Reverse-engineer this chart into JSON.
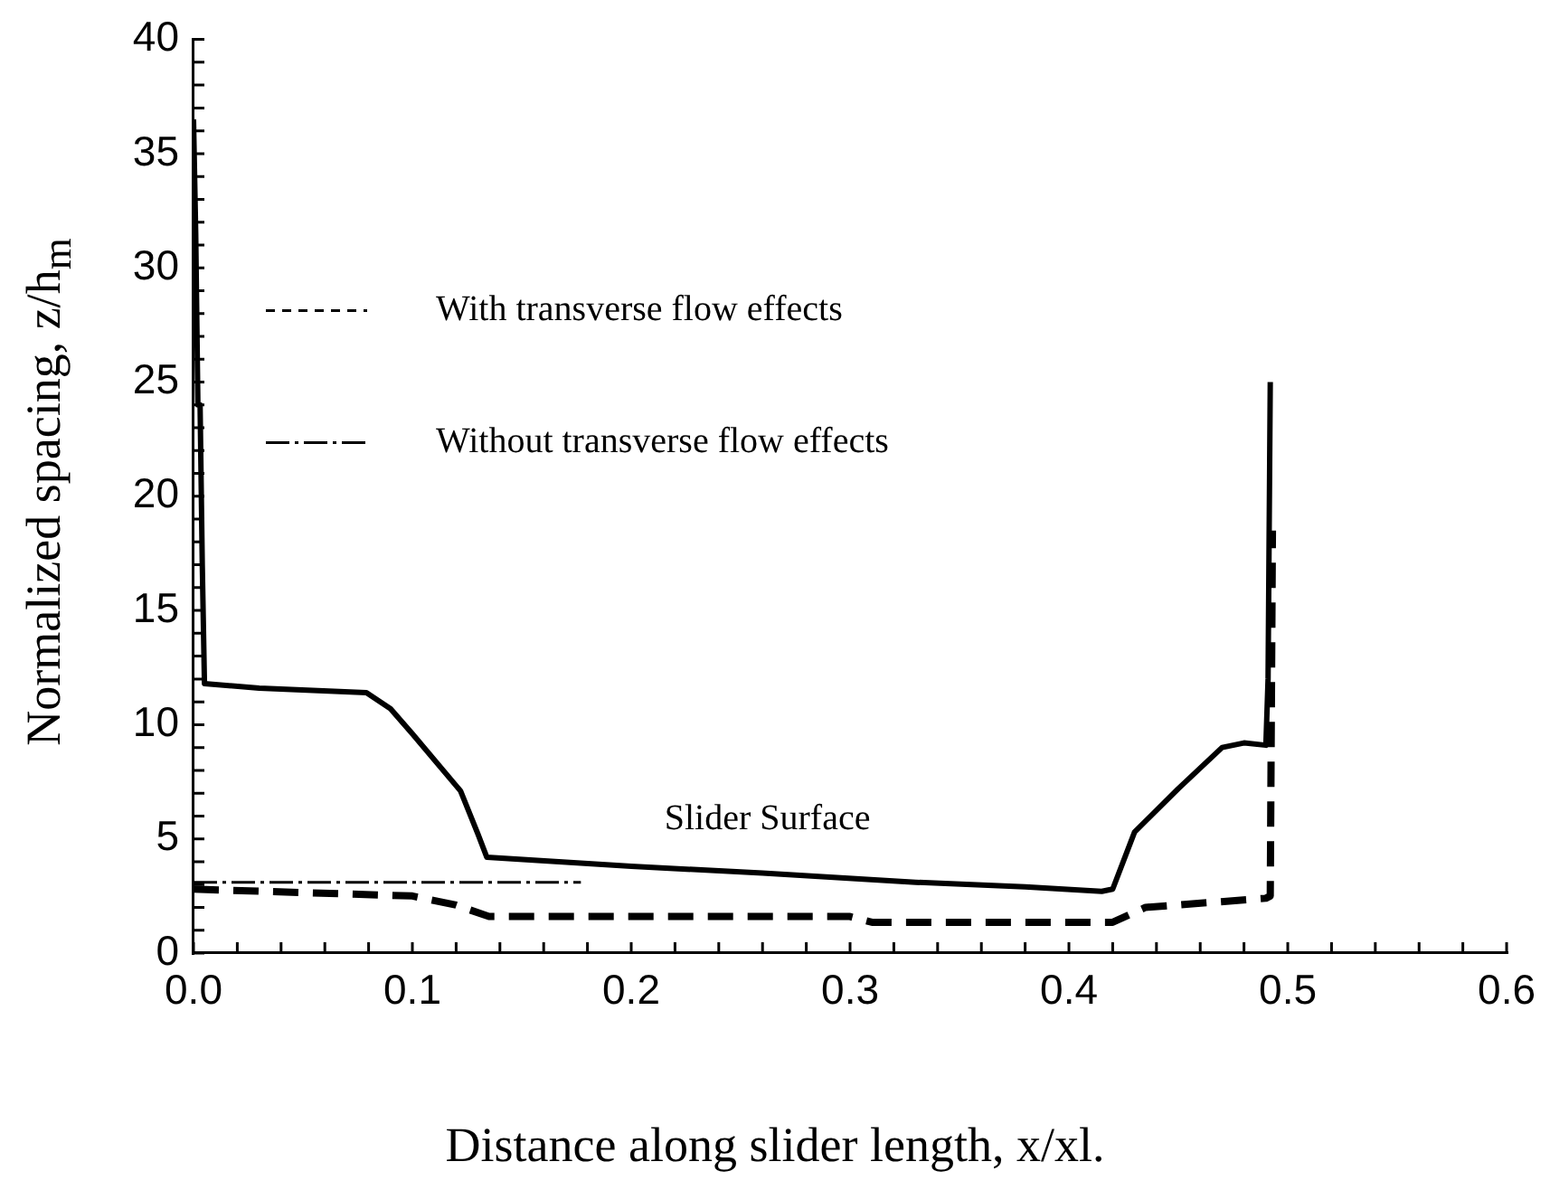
{
  "chart_data": {
    "type": "line",
    "xlabel": "Distance along slider length, x/xl.",
    "ylabel": "Normalized spacing, z/h$_{m}$",
    "xlim": [
      0,
      0.6
    ],
    "ylim": [
      0,
      40
    ],
    "xticks": [
      {
        "value": 0,
        "label": "0.0"
      },
      {
        "value": 0.02,
        "label": null
      },
      {
        "value": 0.04,
        "label": null
      },
      {
        "value": 0.06,
        "label": null
      },
      {
        "value": 0.08,
        "label": null
      },
      {
        "value": 0.1,
        "label": "0.1"
      },
      {
        "value": 0.12,
        "label": null
      },
      {
        "value": 0.14,
        "label": null
      },
      {
        "value": 0.16,
        "label": null
      },
      {
        "value": 0.18,
        "label": null
      },
      {
        "value": 0.2,
        "label": "0.2"
      },
      {
        "value": 0.22,
        "label": null
      },
      {
        "value": 0.24,
        "label": null
      },
      {
        "value": 0.26,
        "label": null
      },
      {
        "value": 0.28,
        "label": null
      },
      {
        "value": 0.3,
        "label": "0.3"
      },
      {
        "value": 0.32,
        "label": null
      },
      {
        "value": 0.34,
        "label": null
      },
      {
        "value": 0.36,
        "label": null
      },
      {
        "value": 0.38,
        "label": null
      },
      {
        "value": 0.4,
        "label": "0.4"
      },
      {
        "value": 0.42,
        "label": null
      },
      {
        "value": 0.44,
        "label": null
      },
      {
        "value": 0.46,
        "label": null
      },
      {
        "value": 0.48,
        "label": null
      },
      {
        "value": 0.5,
        "label": "0.5"
      },
      {
        "value": 0.52,
        "label": null
      },
      {
        "value": 0.54,
        "label": null
      },
      {
        "value": 0.56,
        "label": null
      },
      {
        "value": 0.58,
        "label": null
      },
      {
        "value": 0.6,
        "label": "0.6"
      }
    ],
    "yticks": [
      0,
      {
        "value": 1,
        "label": null
      },
      {
        "value": 2,
        "label": null
      },
      {
        "value": 3,
        "label": null
      },
      {
        "value": 4,
        "label": null
      },
      5,
      {
        "value": 6,
        "label": null
      },
      {
        "value": 7,
        "label": null
      },
      {
        "value": 8,
        "label": null
      },
      {
        "value": 9,
        "label": null
      },
      10,
      {
        "value": 11,
        "label": null
      },
      {
        "value": 12,
        "label": null
      },
      {
        "value": 13,
        "label": null
      },
      {
        "value": 14,
        "label": null
      },
      15,
      {
        "value": 16,
        "label": null
      },
      {
        "value": 17,
        "label": null
      },
      {
        "value": 18,
        "label": null
      },
      {
        "value": 19,
        "label": null
      },
      20,
      {
        "value": 21,
        "label": null
      },
      {
        "value": 22,
        "label": null
      },
      {
        "value": 23,
        "label": null
      },
      {
        "value": 24,
        "label": null
      },
      25,
      {
        "value": 26,
        "label": null
      },
      {
        "value": 27,
        "label": null
      },
      {
        "value": 28,
        "label": null
      },
      {
        "value": 29,
        "label": null
      },
      30,
      {
        "value": 31,
        "label": null
      },
      {
        "value": 32,
        "label": null
      },
      {
        "value": 33,
        "label": null
      },
      {
        "value": 34,
        "label": null
      },
      35,
      {
        "value": 36,
        "label": null
      },
      {
        "value": 37,
        "label": null
      },
      {
        "value": 38,
        "label": null
      },
      {
        "value": 39,
        "label": null
      },
      40
    ],
    "legend": "top left",
    "series": [
      {
        "color": "#000000",
        "line_style": "solid",
        "x": [
          0,
          0.001,
          0.002,
          0.003,
          0.004,
          0.005,
          0.03,
          0.079,
          0.09,
          0.1,
          0.122,
          0.13,
          0.134,
          0.2,
          0.26,
          0.33,
          0.38,
          0.415,
          0.42,
          0.43,
          0.45,
          0.47,
          0.48,
          0.49,
          0.491,
          0.492
        ],
        "values": [
          36.5,
          31.5,
          24,
          24,
          17,
          11.8,
          11.6,
          11.4,
          10.7,
          9.6,
          7.1,
          5.2,
          4.2,
          3.8,
          3.5,
          3.1,
          2.9,
          2.7,
          2.8,
          5.3,
          7.2,
          9.0,
          9.2,
          9.1,
          12,
          25
        ]
      },
      {
        "name": "With transverse flow effects",
        "color": "#000000",
        "line_style": "dashed",
        "x": [
          0,
          0.1,
          0.12,
          0.135,
          0.3,
          0.31,
          0.42,
          0.435,
          0.49,
          0.492,
          0.493
        ],
        "values": [
          2.8,
          2.5,
          2.1,
          1.6,
          1.6,
          1.35,
          1.35,
          2.0,
          2.4,
          2.5,
          18.5
        ]
      },
      {
        "name": "Without transverse flow effects",
        "color": "#000000",
        "line_style": "dashdot",
        "x": [
          0,
          0.177
        ],
        "values": [
          3.1,
          3.1
        ]
      }
    ],
    "annotations": [
      "Slider Surface"
    ]
  }
}
